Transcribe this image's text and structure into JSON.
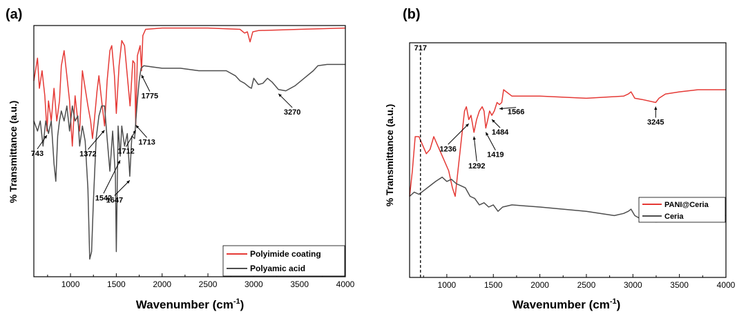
{
  "chart_data": [
    {
      "type": "line",
      "panel_label": "(a)",
      "xlabel": "Wavenumber (cm",
      "xlabel_sup": "-1",
      "xlabel_close": ")",
      "ylabel": "% Transmittance (a.u.)",
      "xlim": [
        600,
        4000
      ],
      "x_ticks": [
        1000,
        1500,
        2000,
        2500,
        3000,
        3500,
        4000
      ],
      "grid": false,
      "legend_position": "bottom-right",
      "series": [
        {
          "name": "Polyimide coating",
          "color": "#e53935",
          "points": [
            [
              600,
              0.78
            ],
            [
              640,
              0.87
            ],
            [
              660,
              0.75
            ],
            [
              690,
              0.82
            ],
            [
              720,
              0.72
            ],
            [
              743,
              0.58
            ],
            [
              760,
              0.7
            ],
            [
              790,
              0.62
            ],
            [
              820,
              0.75
            ],
            [
              850,
              0.62
            ],
            [
              880,
              0.7
            ],
            [
              900,
              0.84
            ],
            [
              930,
              0.9
            ],
            [
              960,
              0.8
            ],
            [
              990,
              0.7
            ],
            [
              1020,
              0.52
            ],
            [
              1050,
              0.72
            ],
            [
              1080,
              0.62
            ],
            [
              1100,
              0.58
            ],
            [
              1130,
              0.82
            ],
            [
              1160,
              0.75
            ],
            [
              1190,
              0.68
            ],
            [
              1220,
              0.62
            ],
            [
              1240,
              0.55
            ],
            [
              1260,
              0.62
            ],
            [
              1290,
              0.74
            ],
            [
              1310,
              0.8
            ],
            [
              1340,
              0.7
            ],
            [
              1372,
              0.6
            ],
            [
              1400,
              0.78
            ],
            [
              1430,
              0.9
            ],
            [
              1450,
              0.92
            ],
            [
              1480,
              0.8
            ],
            [
              1500,
              0.65
            ],
            [
              1530,
              0.84
            ],
            [
              1560,
              0.94
            ],
            [
              1590,
              0.92
            ],
            [
              1620,
              0.8
            ],
            [
              1650,
              0.68
            ],
            [
              1680,
              0.86
            ],
            [
              1700,
              0.85
            ],
            [
              1712,
              0.6
            ],
            [
              1730,
              0.88
            ],
            [
              1760,
              0.92
            ],
            [
              1775,
              0.82
            ],
            [
              1790,
              0.96
            ],
            [
              1820,
              0.985
            ],
            [
              2000,
              0.99
            ],
            [
              2500,
              0.99
            ],
            [
              2850,
              0.985
            ],
            [
              2900,
              0.97
            ],
            [
              2930,
              0.975
            ],
            [
              2960,
              0.935
            ],
            [
              2990,
              0.975
            ],
            [
              3050,
              0.98
            ],
            [
              3500,
              0.985
            ],
            [
              4000,
              0.99
            ]
          ]
        },
        {
          "name": "Polyamic acid",
          "color": "#4d4d4d",
          "points": [
            [
              600,
              0.62
            ],
            [
              640,
              0.58
            ],
            [
              670,
              0.62
            ],
            [
              700,
              0.52
            ],
            [
              730,
              0.62
            ],
            [
              760,
              0.57
            ],
            [
              790,
              0.62
            ],
            [
              820,
              0.45
            ],
            [
              840,
              0.38
            ],
            [
              860,
              0.56
            ],
            [
              880,
              0.62
            ],
            [
              900,
              0.66
            ],
            [
              930,
              0.62
            ],
            [
              960,
              0.68
            ],
            [
              990,
              0.58
            ],
            [
              1020,
              0.68
            ],
            [
              1050,
              0.62
            ],
            [
              1080,
              0.64
            ],
            [
              1100,
              0.52
            ],
            [
              1130,
              0.6
            ],
            [
              1160,
              0.54
            ],
            [
              1190,
              0.35
            ],
            [
              1210,
              0.07
            ],
            [
              1230,
              0.1
            ],
            [
              1250,
              0.3
            ],
            [
              1280,
              0.55
            ],
            [
              1310,
              0.64
            ],
            [
              1340,
              0.68
            ],
            [
              1372,
              0.68
            ],
            [
              1400,
              0.55
            ],
            [
              1430,
              0.42
            ],
            [
              1460,
              0.58
            ],
            [
              1490,
              0.4
            ],
            [
              1500,
              0.1
            ],
            [
              1520,
              0.6
            ],
            [
              1542,
              0.48
            ],
            [
              1560,
              0.6
            ],
            [
              1590,
              0.52
            ],
            [
              1620,
              0.57
            ],
            [
              1647,
              0.4
            ],
            [
              1670,
              0.56
            ],
            [
              1700,
              0.55
            ],
            [
              1713,
              0.62
            ],
            [
              1730,
              0.7
            ],
            [
              1750,
              0.78
            ],
            [
              1770,
              0.83
            ],
            [
              1800,
              0.84
            ],
            [
              1900,
              0.835
            ],
            [
              2000,
              0.83
            ],
            [
              2200,
              0.83
            ],
            [
              2400,
              0.82
            ],
            [
              2600,
              0.82
            ],
            [
              2700,
              0.82
            ],
            [
              2800,
              0.8
            ],
            [
              2850,
              0.78
            ],
            [
              2900,
              0.77
            ],
            [
              2950,
              0.755
            ],
            [
              2975,
              0.75
            ],
            [
              3000,
              0.79
            ],
            [
              3050,
              0.765
            ],
            [
              3100,
              0.77
            ],
            [
              3150,
              0.79
            ],
            [
              3200,
              0.775
            ],
            [
              3270,
              0.745
            ],
            [
              3350,
              0.74
            ],
            [
              3450,
              0.76
            ],
            [
              3550,
              0.79
            ],
            [
              3650,
              0.82
            ],
            [
              3700,
              0.84
            ],
            [
              3800,
              0.845
            ],
            [
              4000,
              0.845
            ]
          ]
        }
      ],
      "annotations": [
        {
          "text": "743",
          "x": 743,
          "y": 0.58
        },
        {
          "text": "1372",
          "x": 1372,
          "y": 0.6
        },
        {
          "text": "1712",
          "x": 1712,
          "y": 0.6
        },
        {
          "text": "1775",
          "x": 1775,
          "y": 0.82
        },
        {
          "text": "3270",
          "x": 3270,
          "y": 0.745
        },
        {
          "text": "1713",
          "x": 1713,
          "y": 0.62
        },
        {
          "text": "1647",
          "x": 1647,
          "y": 0.4
        },
        {
          "text": "1542",
          "x": 1542,
          "y": 0.48
        }
      ]
    },
    {
      "type": "line",
      "panel_label": "(b)",
      "xlabel": "Wavenumber (cm",
      "xlabel_sup": "-1",
      "xlabel_close": ")",
      "ylabel": "% Transmittance (a.u.)",
      "xlim": [
        600,
        4000
      ],
      "x_ticks": [
        1000,
        1500,
        2000,
        2500,
        3000,
        3500,
        4000
      ],
      "grid": false,
      "legend_position": "bottom-right",
      "reference_line": {
        "x": 717,
        "label": "717"
      },
      "series": [
        {
          "name": "PANI@Ceria",
          "color": "#e53935",
          "points": [
            [
              600,
              0.64
            ],
            [
              630,
              0.7
            ],
            [
              660,
              0.78
            ],
            [
              700,
              0.78
            ],
            [
              740,
              0.76
            ],
            [
              780,
              0.74
            ],
            [
              820,
              0.75
            ],
            [
              860,
              0.78
            ],
            [
              900,
              0.76
            ],
            [
              940,
              0.74
            ],
            [
              980,
              0.72
            ],
            [
              1020,
              0.7
            ],
            [
              1060,
              0.66
            ],
            [
              1090,
              0.64
            ],
            [
              1120,
              0.7
            ],
            [
              1160,
              0.78
            ],
            [
              1190,
              0.84
            ],
            [
              1210,
              0.85
            ],
            [
              1236,
              0.82
            ],
            [
              1260,
              0.83
            ],
            [
              1292,
              0.79
            ],
            [
              1320,
              0.82
            ],
            [
              1350,
              0.84
            ],
            [
              1380,
              0.85
            ],
            [
              1400,
              0.84
            ],
            [
              1419,
              0.8
            ],
            [
              1440,
              0.82
            ],
            [
              1460,
              0.84
            ],
            [
              1484,
              0.83
            ],
            [
              1510,
              0.84
            ],
            [
              1540,
              0.86
            ],
            [
              1566,
              0.855
            ],
            [
              1590,
              0.86
            ],
            [
              1610,
              0.89
            ],
            [
              1640,
              0.885
            ],
            [
              1700,
              0.875
            ],
            [
              2000,
              0.875
            ],
            [
              2500,
              0.87
            ],
            [
              2900,
              0.875
            ],
            [
              2950,
              0.88
            ],
            [
              2980,
              0.885
            ],
            [
              3020,
              0.87
            ],
            [
              3100,
              0.867
            ],
            [
              3245,
              0.86
            ],
            [
              3280,
              0.87
            ],
            [
              3350,
              0.88
            ],
            [
              3500,
              0.885
            ],
            [
              3700,
              0.89
            ],
            [
              4000,
              0.89
            ]
          ]
        },
        {
          "name": "Ceria",
          "color": "#4d4d4d",
          "points": [
            [
              600,
              0.64
            ],
            [
              650,
              0.65
            ],
            [
              700,
              0.645
            ],
            [
              760,
              0.655
            ],
            [
              820,
              0.665
            ],
            [
              880,
              0.675
            ],
            [
              950,
              0.685
            ],
            [
              1000,
              0.675
            ],
            [
              1050,
              0.68
            ],
            [
              1100,
              0.67
            ],
            [
              1150,
              0.665
            ],
            [
              1200,
              0.66
            ],
            [
              1250,
              0.64
            ],
            [
              1300,
              0.635
            ],
            [
              1350,
              0.62
            ],
            [
              1400,
              0.625
            ],
            [
              1450,
              0.615
            ],
            [
              1500,
              0.62
            ],
            [
              1550,
              0.605
            ],
            [
              1600,
              0.615
            ],
            [
              1700,
              0.62
            ],
            [
              2000,
              0.615
            ],
            [
              2500,
              0.605
            ],
            [
              2800,
              0.595
            ],
            [
              2900,
              0.6
            ],
            [
              2950,
              0.605
            ],
            [
              2980,
              0.61
            ],
            [
              3020,
              0.595
            ],
            [
              3100,
              0.585
            ],
            [
              3250,
              0.58
            ],
            [
              3400,
              0.585
            ],
            [
              3600,
              0.6
            ],
            [
              3700,
              0.605
            ],
            [
              3850,
              0.6
            ],
            [
              4000,
              0.595
            ]
          ]
        }
      ],
      "annotations": [
        {
          "text": "1236",
          "x": 1236,
          "y": 0.82
        },
        {
          "text": "1292",
          "x": 1292,
          "y": 0.79
        },
        {
          "text": "1419",
          "x": 1419,
          "y": 0.8
        },
        {
          "text": "1484",
          "x": 1484,
          "y": 0.83
        },
        {
          "text": "1566",
          "x": 1566,
          "y": 0.855
        },
        {
          "text": "3245",
          "x": 3245,
          "y": 0.86
        }
      ]
    }
  ]
}
